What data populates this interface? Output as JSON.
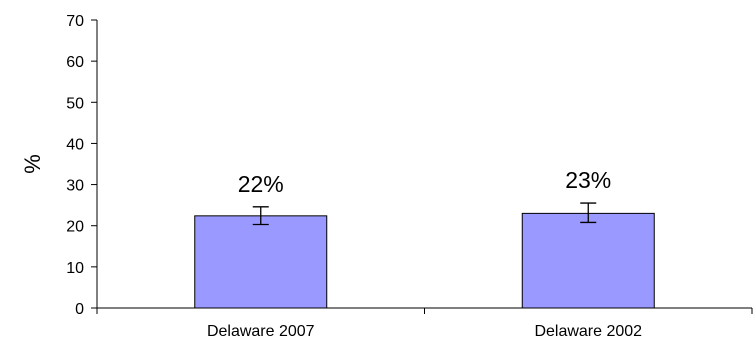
{
  "chart_data": {
    "type": "bar",
    "categories": [
      "Delaware 2007",
      "Delaware 2002"
    ],
    "values": [
      22.4,
      23.0
    ],
    "data_labels": [
      "22%",
      "23%"
    ],
    "error_bars": [
      {
        "low": 20.3,
        "high": 24.6
      },
      {
        "low": 20.8,
        "high": 25.5
      }
    ],
    "title": "",
    "xlabel": "",
    "ylabel": "%",
    "ylim": [
      0,
      70
    ],
    "yticks": [
      "0",
      "10",
      "20",
      "30",
      "40",
      "50",
      "60",
      "70"
    ],
    "grid": false,
    "legend": "none",
    "bar_color": "#9999ff",
    "bar_stroke": "#000000"
  }
}
